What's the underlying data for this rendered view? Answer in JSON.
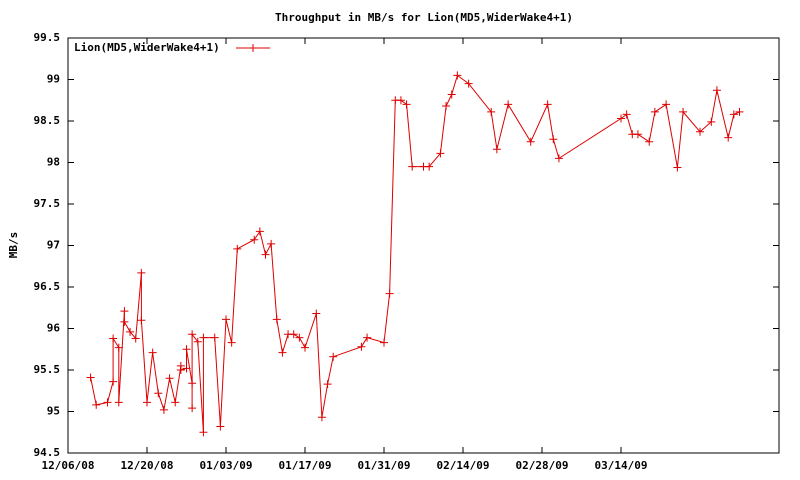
{
  "chart_data": {
    "type": "line",
    "title": "Throughput in MB/s for Lion(MD5,WiderWake4+1)",
    "y_label": "MB/s",
    "legend": "top-left",
    "series": [
      {
        "name": "Lion(MD5,WiderWake4+1)",
        "color": "#dd0000",
        "values": [
          95.41,
          95.08,
          95.11,
          95.36,
          95.88,
          95.77,
          95.11,
          96.21,
          96.08,
          95.96,
          95.88,
          96.67,
          96.1,
          95.11,
          95.71,
          95.22,
          95.02,
          95.4,
          95.11,
          95.55,
          95.5,
          95.52,
          95.75,
          95.34,
          95.04,
          95.93,
          95.84,
          94.75,
          95.89,
          95.89,
          94.82,
          96.11,
          95.83,
          96.96,
          97.07,
          97.17,
          96.89,
          97.02,
          96.11,
          95.71,
          95.93,
          95.93,
          95.89,
          95.77,
          96.18,
          94.93,
          95.33,
          95.66,
          95.78,
          95.89,
          95.83,
          96.42,
          98.75,
          98.75,
          98.7,
          97.95,
          97.95,
          97.95,
          98.11,
          98.68,
          98.82,
          99.05,
          98.95,
          98.61,
          98.16,
          98.7,
          98.25,
          98.7,
          98.28,
          98.05,
          98.53,
          98.58,
          98.34,
          98.34,
          98.25,
          98.61,
          98.7,
          97.94,
          98.61,
          98.37,
          98.49,
          98.87,
          98.3,
          98.58,
          98.61
        ]
      }
    ],
    "x": [
      "2008-12-10",
      "2008-12-11",
      "2008-12-13",
      "2008-12-14",
      "2008-12-14",
      "2008-12-15",
      "2008-12-15",
      "2008-12-16",
      "2008-12-16",
      "2008-12-17",
      "2008-12-18",
      "2008-12-19",
      "2008-12-19",
      "2008-12-20",
      "2008-12-21",
      "2008-12-22",
      "2008-12-23",
      "2008-12-24",
      "2008-12-25",
      "2008-12-26",
      "2008-12-26",
      "2008-12-27",
      "2008-12-27",
      "2008-12-28",
      "2008-12-28",
      "2008-12-28",
      "2008-12-29",
      "2008-12-30",
      "2008-12-30",
      "2009-01-01",
      "2009-01-02",
      "2009-01-03",
      "2009-01-04",
      "2009-01-05",
      "2009-01-08",
      "2009-01-09",
      "2009-01-10",
      "2009-01-11",
      "2009-01-12",
      "2009-01-13",
      "2009-01-14",
      "2009-01-15",
      "2009-01-16",
      "2009-01-17",
      "2009-01-19",
      "2009-01-20",
      "2009-01-21",
      "2009-01-22",
      "2009-01-27",
      "2009-01-28",
      "2009-01-31",
      "2009-02-01",
      "2009-02-02",
      "2009-02-03",
      "2009-02-04",
      "2009-02-05",
      "2009-02-07",
      "2009-02-08",
      "2009-02-10",
      "2009-02-11",
      "2009-02-12",
      "2009-02-13",
      "2009-02-15",
      "2009-02-19",
      "2009-02-20",
      "2009-02-22",
      "2009-02-26",
      "2009-03-01",
      "2009-03-02",
      "2009-03-03",
      "2009-03-14",
      "2009-03-15",
      "2009-03-16",
      "2009-03-17",
      "2009-03-19",
      "2009-03-20",
      "2009-03-22",
      "2009-03-24",
      "2009-03-25",
      "2009-03-28",
      "2009-03-30",
      "2009-03-31",
      "2009-04-02",
      "2009-04-03",
      "2009-04-04"
    ],
    "xlim": [
      "2008-12-06",
      "2009-04-11"
    ],
    "xticks": [
      {
        "value": "2008-12-06",
        "label": "12/06/08"
      },
      {
        "value": "2008-12-20",
        "label": "12/20/08"
      },
      {
        "value": "2009-01-03",
        "label": "01/03/09"
      },
      {
        "value": "2009-01-17",
        "label": "01/17/09"
      },
      {
        "value": "2009-01-31",
        "label": "01/31/09"
      },
      {
        "value": "2009-02-14",
        "label": "02/14/09"
      },
      {
        "value": "2009-02-28",
        "label": "02/28/09"
      },
      {
        "value": "2009-03-14",
        "label": "03/14/09"
      }
    ],
    "ylim": [
      94.5,
      99.5
    ],
    "yticks": [
      94.5,
      95,
      95.5,
      96,
      96.5,
      97,
      97.5,
      98,
      98.5,
      99,
      99.5
    ]
  }
}
